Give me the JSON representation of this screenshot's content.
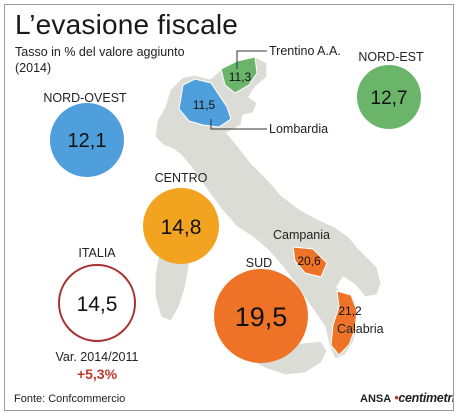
{
  "title": "L’evasione fiscale",
  "subtitle": "Tasso in % del valore aggiunto",
  "year": "(2014)",
  "source": "Fonte: Confcommercio",
  "brand": {
    "ansa": "ANSA",
    "sep": "•",
    "name_pre": "c",
    "name_mid": "entimetri"
  },
  "colors": {
    "nord_ovest": "#4f9fdc",
    "nord_est": "#6ab56a",
    "centro": "#f2a320",
    "sud": "#ee7326",
    "italia_ring": "#a8302f",
    "variation": "#c0392b",
    "map": "#dcdcd6"
  },
  "chart_data": {
    "type": "map",
    "title": "L’evasione fiscale",
    "subtitle": "Tasso in % del valore aggiunto (2014)",
    "unit": "%",
    "areas": [
      {
        "label": "NORD-OVEST",
        "value": "12,1",
        "number": 12.1
      },
      {
        "label": "NORD-EST",
        "value": "12,7",
        "number": 12.7
      },
      {
        "label": "CENTRO",
        "value": "14,8",
        "number": 14.8
      },
      {
        "label": "SUD",
        "value": "19,5",
        "number": 19.5
      },
      {
        "label": "ITALIA",
        "value": "14,5",
        "number": 14.5
      }
    ],
    "regions": [
      {
        "label": "Trentino A.A.",
        "value": "11,3",
        "number": 11.3
      },
      {
        "label": "Lombardia",
        "value": "11,5",
        "number": 11.5
      },
      {
        "label": "Campania",
        "value": "20,6",
        "number": 20.6
      },
      {
        "label": "Calabria",
        "value": "21,2",
        "number": 21.2
      }
    ],
    "variation": {
      "label": "Var. 2014/2011",
      "value": "+5,3%"
    }
  }
}
